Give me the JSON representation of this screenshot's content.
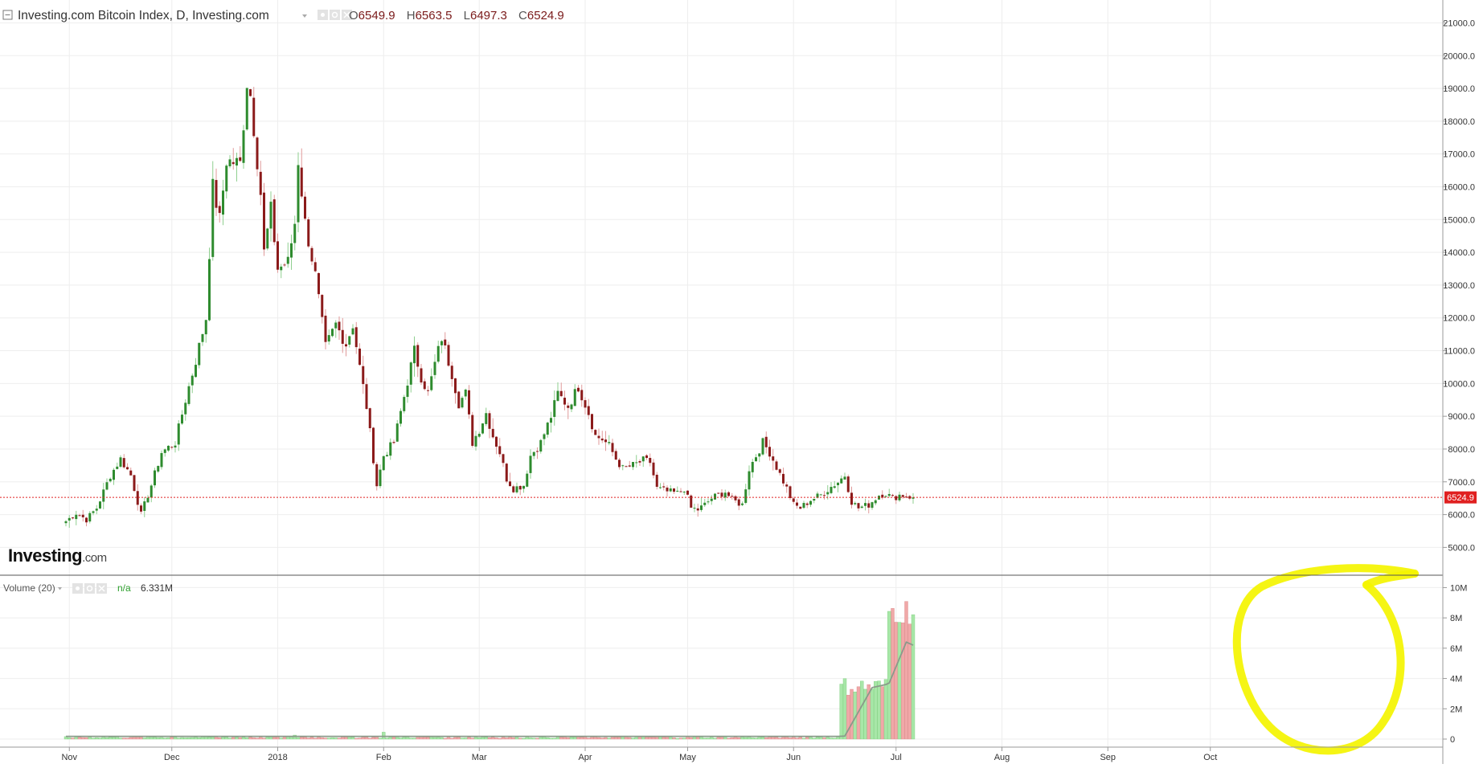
{
  "header": {
    "collapse_icon": "collapse-square-icon",
    "symbol_title": "Investing.com Bitcoin Index, D, Investing.com",
    "dropdown_icon": "chevron-down-icon",
    "settings_icons": [
      "eye-icon",
      "gear-icon",
      "close-icon"
    ],
    "ohlc": {
      "o_label": "O",
      "o_value": "6549.9",
      "h_label": "H",
      "h_value": "6563.5",
      "l_label": "L",
      "l_value": "6497.3",
      "c_label": "C",
      "c_value": "6524.9"
    }
  },
  "logo": {
    "text": "Investing",
    "suffix": ".com"
  },
  "volume_header": {
    "label": "Volume (20)",
    "dropdown_icon": "chevron-down-icon",
    "settings_icons": [
      "eye-icon",
      "gear-icon",
      "close-icon"
    ],
    "ma_value": "n/a",
    "vol_value": "6.331M"
  },
  "last_price_tag": "6524.9",
  "colors": {
    "up": "#2e8b2e",
    "down": "#8b1a1a",
    "up_volume": "#a8e6a8",
    "down_volume": "#f0a8a8",
    "volume_ma": "#8a9a8a",
    "last_price_line": "#e02020",
    "highlight": "#f4f400",
    "grid": "#eeeeee"
  },
  "chart_data": {
    "type": "candlestick",
    "price_axis": {
      "ticks": [
        "5000.0",
        "6000.0",
        "7000.0",
        "8000.0",
        "9000.0",
        "10000.0",
        "11000.0",
        "12000.0",
        "13000.0",
        "14000.0",
        "15000.0",
        "16000.0",
        "17000.0",
        "18000.0",
        "19000.0",
        "20000.0",
        "21000.0"
      ],
      "ylim": [
        4250,
        21550
      ]
    },
    "volume_axis": {
      "ticks": [
        "0",
        "2M",
        "4M",
        "6M",
        "8M",
        "10M"
      ],
      "ylim": [
        0,
        10500000
      ]
    },
    "time_axis": {
      "labels": [
        "Nov",
        "Dec",
        "2018",
        "Feb",
        "Mar",
        "Apr",
        "May",
        "Jun",
        "Jul",
        "Aug",
        "Sep",
        "Oct"
      ],
      "label_day_index": [
        1,
        31,
        62,
        93,
        121,
        152,
        182,
        213,
        243,
        274,
        305,
        335
      ]
    },
    "start_date": "2017-10-31",
    "last_close": 6524.9,
    "anchors": [
      [
        0,
        5800
      ],
      [
        3,
        6050
      ],
      [
        6,
        5850
      ],
      [
        9,
        6200
      ],
      [
        13,
        7200
      ],
      [
        16,
        7700
      ],
      [
        19,
        7200
      ],
      [
        22,
        6000
      ],
      [
        25,
        6900
      ],
      [
        28,
        7900
      ],
      [
        32,
        8200
      ],
      [
        35,
        9500
      ],
      [
        38,
        10700
      ],
      [
        41,
        12000
      ],
      [
        43,
        16000
      ],
      [
        45,
        15000
      ],
      [
        47,
        16800
      ],
      [
        51,
        16700
      ],
      [
        53,
        19200
      ],
      [
        54,
        18800
      ],
      [
        57,
        15800
      ],
      [
        58,
        14000
      ],
      [
        60,
        15300
      ],
      [
        62,
        13500
      ],
      [
        65,
        13700
      ],
      [
        67,
        14900
      ],
      [
        68,
        16800
      ],
      [
        70,
        14900
      ],
      [
        73,
        13300
      ],
      [
        76,
        11100
      ],
      [
        79,
        11800
      ],
      [
        82,
        11200
      ],
      [
        84,
        11800
      ],
      [
        86,
        10500
      ],
      [
        88,
        9300
      ],
      [
        89,
        8500
      ],
      [
        91,
        6900
      ],
      [
        93,
        7800
      ],
      [
        96,
        8200
      ],
      [
        99,
        9600
      ],
      [
        102,
        11000
      ],
      [
        104,
        10200
      ],
      [
        106,
        9700
      ],
      [
        108,
        10600
      ],
      [
        110,
        11400
      ],
      [
        113,
        10300
      ],
      [
        115,
        9400
      ],
      [
        117,
        9700
      ],
      [
        119,
        8200
      ],
      [
        121,
        8600
      ],
      [
        123,
        9100
      ],
      [
        125,
        8400
      ],
      [
        127,
        7900
      ],
      [
        129,
        7100
      ],
      [
        131,
        6800
      ],
      [
        134,
        6900
      ],
      [
        136,
        7800
      ],
      [
        139,
        8200
      ],
      [
        142,
        9000
      ],
      [
        144,
        9700
      ],
      [
        147,
        9300
      ],
      [
        150,
        9900
      ],
      [
        153,
        9100
      ],
      [
        155,
        8400
      ],
      [
        157,
        8300
      ],
      [
        159,
        8100
      ],
      [
        161,
        7700
      ],
      [
        163,
        7400
      ],
      [
        166,
        7500
      ],
      [
        169,
        7650
      ],
      [
        171,
        7600
      ],
      [
        173,
        6800
      ],
      [
        176,
        6700
      ],
      [
        179,
        6650
      ],
      [
        181,
        6800
      ],
      [
        183,
        6200
      ],
      [
        185,
        6150
      ],
      [
        187,
        6300
      ],
      [
        189,
        6500
      ],
      [
        193,
        6700
      ],
      [
        195,
        6450
      ],
      [
        198,
        6300
      ],
      [
        200,
        7400
      ],
      [
        204,
        8200
      ],
      [
        206,
        7900
      ],
      [
        208,
        7450
      ],
      [
        211,
        6800
      ],
      [
        213,
        6300
      ],
      [
        215,
        6200
      ],
      [
        218,
        6450
      ],
      [
        221,
        6600
      ],
      [
        224,
        6850
      ],
      [
        226,
        7000
      ],
      [
        228,
        7200
      ],
      [
        230,
        6400
      ],
      [
        232,
        6200
      ],
      [
        235,
        6300
      ],
      [
        238,
        6600
      ],
      [
        240,
        6650
      ],
      [
        242,
        6500
      ],
      [
        244,
        6600
      ],
      [
        246,
        6580
      ],
      [
        248,
        6520
      ]
    ],
    "volume": {
      "low_level": 120000,
      "phase_start_day": 227,
      "phase1_level": 3500000,
      "phase2_start_day": 241,
      "phase2_level": 9200000,
      "ma_points": [
        [
          0,
          180000
        ],
        [
          226,
          180000
        ],
        [
          228,
          200000
        ],
        [
          236,
          3400000
        ],
        [
          240,
          3600000
        ],
        [
          241,
          3700000
        ],
        [
          246,
          6400000
        ],
        [
          248,
          6200000
        ]
      ]
    }
  }
}
